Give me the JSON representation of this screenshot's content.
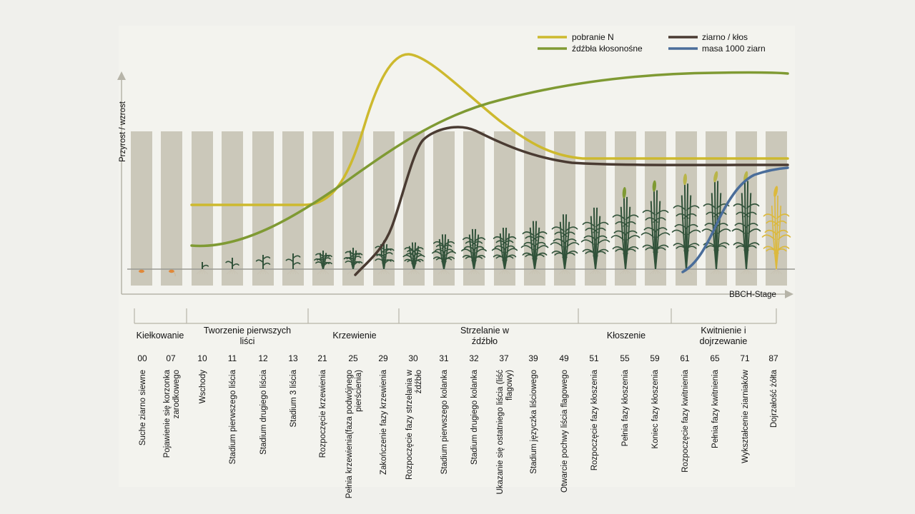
{
  "axes": {
    "y_label": "Przyrost / wzrost",
    "x_label": "BBCH-Stage"
  },
  "legend": [
    {
      "label": "pobranie N",
      "color": "#cdb92e"
    },
    {
      "label": "ziarno / kłos",
      "color": "#4a3b32"
    },
    {
      "label": "źdźbła kłosonośne",
      "color": "#7f9a33"
    },
    {
      "label": "masa 1000 ziarn",
      "color": "#4a6d9a"
    }
  ],
  "phases": [
    {
      "label": "Kiełkowanie"
    },
    {
      "label": "Tworzenie pierwszych liści"
    },
    {
      "label": "Krzewienie"
    },
    {
      "label": "Strzelanie w źdźbło"
    },
    {
      "label": "Kłoszenie"
    },
    {
      "label": "Kwitnienie i dojrzewanie"
    }
  ],
  "stages": [
    {
      "code": "00",
      "desc": "Suche ziarno siewne"
    },
    {
      "code": "07",
      "desc": "Pojawienie się korzonka zarodkowego"
    },
    {
      "code": "10",
      "desc": "Wschody"
    },
    {
      "code": "11",
      "desc": "Stadium pierwszego liścia"
    },
    {
      "code": "12",
      "desc": "Stadium drugiego liścia"
    },
    {
      "code": "13",
      "desc": "Stadium 3 liścia"
    },
    {
      "code": "21",
      "desc": "Rozpoczęcie krzewienia"
    },
    {
      "code": "25",
      "desc": "Pełnia krzewienia(faza podwójnego pierścienia)"
    },
    {
      "code": "29",
      "desc": "Zakończenie fazy krzewienia"
    },
    {
      "code": "30",
      "desc": "Rozpoczęcie fazy strzelania w źdźbło"
    },
    {
      "code": "31",
      "desc": "Stadium pierwszego kolanka"
    },
    {
      "code": "32",
      "desc": "Stadium drugiego kolanka"
    },
    {
      "code": "37",
      "desc": "Ukazanie się ostatniego liścia (liść flagowy)"
    },
    {
      "code": "39",
      "desc": "Stadium języczka liściowego"
    },
    {
      "code": "49",
      "desc": "Otwarcie pochwy liścia flagowego"
    },
    {
      "code": "51",
      "desc": "Rozpoczęcie fazy kłoszenia"
    },
    {
      "code": "55",
      "desc": "Pełnia fazy kłoszenia"
    },
    {
      "code": "59",
      "desc": "Koniec fazy kłoszenia"
    },
    {
      "code": "61",
      "desc": "Rozpoczęcie fazy kwitnienia"
    },
    {
      "code": "65",
      "desc": "Pełnia fazy kwitnienia"
    },
    {
      "code": "71",
      "desc": "Wykształcenie ziarniaków"
    },
    {
      "code": "87",
      "desc": "Dojrzałość żółta"
    }
  ],
  "colors": {
    "column": "#cbc8ba",
    "baseline": "#9a9a94",
    "plant": "#31523a",
    "plant_ripe": "#dcb93c",
    "seed": "#e0893a",
    "axis": "#b6b4a8"
  }
}
